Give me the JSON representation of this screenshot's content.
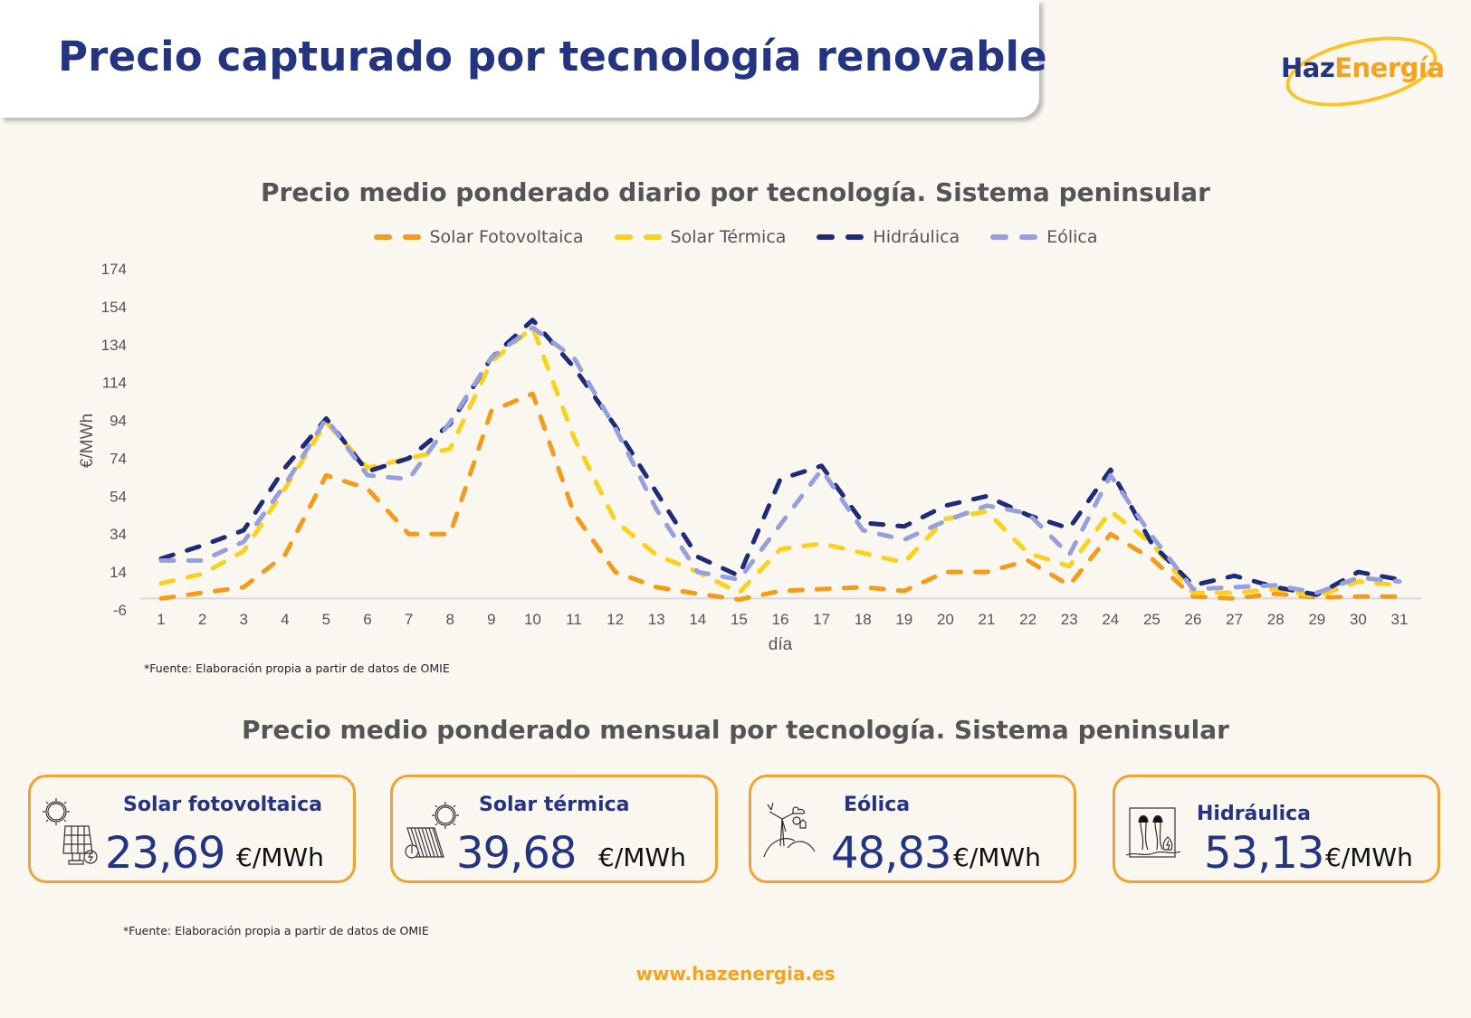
{
  "header": {
    "title": "Precio capturado por tecnología renovable"
  },
  "logo": {
    "part1": "Haz",
    "part2": "Energía"
  },
  "colors": {
    "navy": "#253480",
    "orange": "#f39c1c",
    "yellow": "#fbd11c",
    "dark_navy": "#1f2a78",
    "lavender": "#97a0dc",
    "card_border": "#f0a332"
  },
  "chart_data": {
    "type": "line",
    "title": "Precio medio ponderado diario por tecnología. Sistema peninsular",
    "xlabel": "día",
    "ylabel": "€/MWh",
    "ylim": [
      -6,
      174
    ],
    "yticks": [
      "174",
      "154",
      "134",
      "114",
      "94",
      "74",
      "54",
      "34",
      "14",
      "-6"
    ],
    "ytick_values": [
      174,
      154,
      134,
      114,
      94,
      74,
      54,
      34,
      14,
      -6
    ],
    "x": [
      "1",
      "2",
      "3",
      "4",
      "5",
      "6",
      "7",
      "8",
      "9",
      "10",
      "11",
      "12",
      "13",
      "14",
      "15",
      "16",
      "17",
      "18",
      "19",
      "20",
      "21",
      "22",
      "23",
      "24",
      "25",
      "26",
      "27",
      "28",
      "29",
      "30",
      "31"
    ],
    "legend_position": "top-center",
    "grid": false,
    "series": [
      {
        "name": "Solar Fotovoltaica",
        "color": "#f39c1c",
        "values": [
          0,
          3,
          6,
          23,
          65,
          58,
          34,
          34,
          99,
          108,
          45,
          14,
          6,
          2.5,
          -0.5,
          4,
          5,
          6,
          4,
          14,
          14,
          20,
          7,
          34,
          21,
          1,
          0,
          2.5,
          0.5,
          1,
          1
        ]
      },
      {
        "name": "Solar Térmica",
        "color": "#fbd11c",
        "values": [
          8,
          13,
          25,
          58,
          93,
          69,
          74,
          79,
          125,
          143,
          85,
          41,
          23,
          14,
          3,
          26,
          29,
          24,
          19,
          42,
          46,
          24,
          17,
          46,
          29,
          3,
          3,
          5,
          1,
          9,
          7
        ]
      },
      {
        "name": "Hidráulica",
        "color": "#1f2a78",
        "values": [
          21,
          28,
          36,
          69,
          95,
          67,
          74,
          92,
          127,
          147,
          122,
          91,
          56,
          22,
          12,
          63,
          70,
          40,
          38,
          49,
          54,
          44,
          37,
          68,
          29,
          7,
          12,
          6,
          2,
          14,
          10
        ]
      },
      {
        "name": "Eólica",
        "color": "#97a0dc",
        "values": [
          20,
          20,
          30,
          60,
          95,
          65,
          63,
          93,
          127,
          143,
          127,
          90,
          47,
          14,
          10,
          39,
          68,
          36,
          31,
          41,
          49,
          45,
          23,
          65,
          33,
          5,
          6,
          7,
          3,
          11,
          9
        ]
      }
    ]
  },
  "source_note_1": "*Fuente:  Elaboración propia a partir de datos de OMIE",
  "monthly": {
    "title": "Precio medio ponderado mensual por tecnología. Sistema peninsular",
    "cards": [
      {
        "label": "Solar fotovoltaica",
        "value": "23,69",
        "unit": "€/MWh",
        "icon": "solar-panel-icon"
      },
      {
        "label": "Solar térmica",
        "value": "39,68",
        "unit": "€/MWh",
        "icon": "solar-thermal-icon"
      },
      {
        "label": "Eólica",
        "value": "48,83",
        "unit": "€/MWh",
        "icon": "wind-turbine-icon"
      },
      {
        "label": "Hidráulica",
        "value": "53,13",
        "unit": "€/MWh",
        "icon": "hydro-dam-icon"
      }
    ]
  },
  "source_note_2": "*Fuente:  Elaboración propia a partir de datos de OMIE",
  "footer": {
    "website": "www.hazenergia.es"
  }
}
